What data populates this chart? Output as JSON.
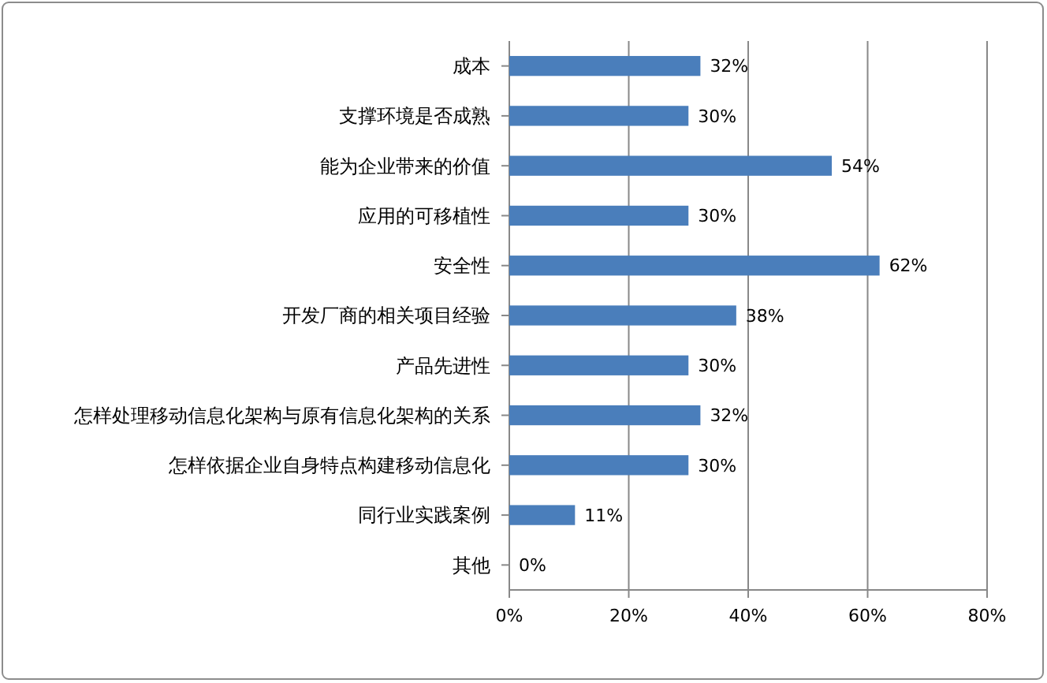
{
  "chart_data": {
    "type": "bar",
    "orientation": "horizontal",
    "categories": [
      "成本",
      "支撑环境是否成熟",
      "能为企业带来的价值",
      "应用的可移植性",
      "安全性",
      "开发厂商的相关项目经验",
      "产品先进性",
      "怎样处理移动信息化架构与原有信息化架构的关系",
      "怎样依据企业自身特点构建移动信息化",
      "同行业实践案例",
      "其他"
    ],
    "values": [
      32,
      30,
      54,
      30,
      62,
      38,
      30,
      32,
      30,
      11,
      0
    ],
    "value_labels": [
      "32%",
      "30%",
      "54%",
      "30%",
      "62%",
      "38%",
      "30%",
      "32%",
      "30%",
      "11%",
      "0%"
    ],
    "color": "#4a7ebb",
    "xlim": [
      0,
      80
    ],
    "xticks": [
      {
        "value": 0,
        "label": "0%"
      },
      {
        "value": 20,
        "label": "20%"
      },
      {
        "value": 40,
        "label": "40%"
      },
      {
        "value": 60,
        "label": "60%"
      },
      {
        "value": 80,
        "label": "80%"
      }
    ],
    "grid": "x"
  }
}
